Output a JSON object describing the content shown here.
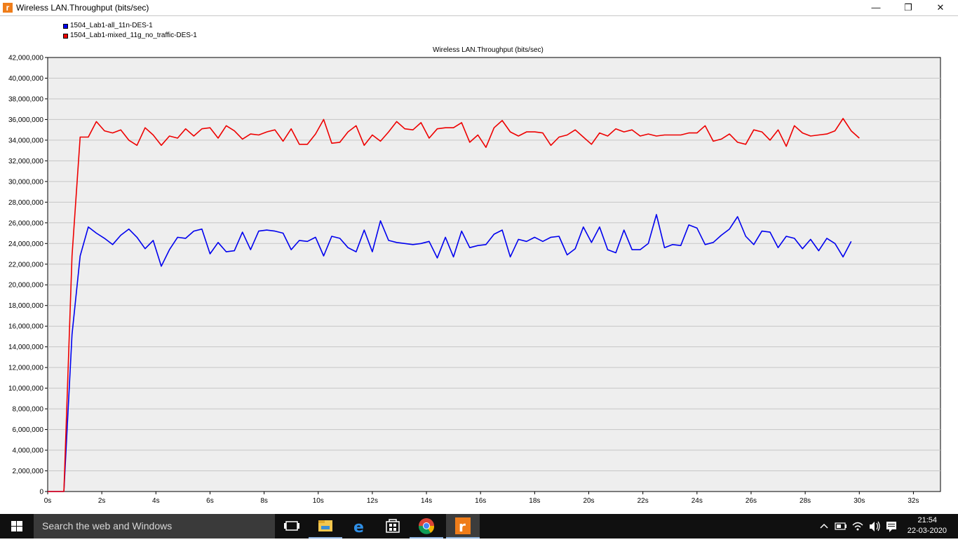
{
  "window": {
    "title": "Wireless LAN.Throughput (bits/sec)",
    "app_icon_glyph": "r",
    "minimize_glyph": "—",
    "maximize_glyph": "❐",
    "close_glyph": "✕"
  },
  "chart_data": {
    "type": "line",
    "title": "Wireless LAN.Throughput (bits/sec)",
    "xlabel": "",
    "ylabel": "",
    "xlim": [
      0,
      33
    ],
    "ylim": [
      0,
      42000000
    ],
    "x_ticks": [
      "0s",
      "2s",
      "4s",
      "6s",
      "8s",
      "10s",
      "12s",
      "14s",
      "16s",
      "18s",
      "20s",
      "22s",
      "24s",
      "26s",
      "28s",
      "30s",
      "32s"
    ],
    "y_ticks": [
      "0",
      "2,000,000",
      "4,000,000",
      "6,000,000",
      "8,000,000",
      "10,000,000",
      "12,000,000",
      "14,000,000",
      "16,000,000",
      "18,000,000",
      "20,000,000",
      "22,000,000",
      "24,000,000",
      "26,000,000",
      "28,000,000",
      "30,000,000",
      "32,000,000",
      "34,000,000",
      "36,000,000",
      "38,000,000",
      "40,000,000",
      "42,000,000"
    ],
    "grid": true,
    "legend": "top-left",
    "background": "#eeeeee",
    "series": [
      {
        "name": "1504_Lab1-all_11n-DES-1",
        "color": "#0000ee",
        "points": [
          [
            0,
            0
          ],
          [
            0.6,
            0
          ],
          [
            0.9,
            15200000
          ],
          [
            1.2,
            22800000
          ],
          [
            1.5,
            25600000
          ],
          [
            1.8,
            25000000
          ],
          [
            2.1,
            24500000
          ],
          [
            2.4,
            23900000
          ],
          [
            2.7,
            24800000
          ],
          [
            3.0,
            25400000
          ],
          [
            3.3,
            24600000
          ],
          [
            3.6,
            23500000
          ],
          [
            3.9,
            24300000
          ],
          [
            4.2,
            21800000
          ],
          [
            4.5,
            23400000
          ],
          [
            4.8,
            24600000
          ],
          [
            5.1,
            24500000
          ],
          [
            5.4,
            25200000
          ],
          [
            5.7,
            25400000
          ],
          [
            6.0,
            23000000
          ],
          [
            6.3,
            24100000
          ],
          [
            6.6,
            23200000
          ],
          [
            6.9,
            23300000
          ],
          [
            7.2,
            25100000
          ],
          [
            7.5,
            23400000
          ],
          [
            7.8,
            25200000
          ],
          [
            8.1,
            25300000
          ],
          [
            8.4,
            25200000
          ],
          [
            8.7,
            25000000
          ],
          [
            9.0,
            23400000
          ],
          [
            9.3,
            24300000
          ],
          [
            9.6,
            24200000
          ],
          [
            9.9,
            24600000
          ],
          [
            10.2,
            22800000
          ],
          [
            10.5,
            24700000
          ],
          [
            10.8,
            24500000
          ],
          [
            11.1,
            23600000
          ],
          [
            11.4,
            23200000
          ],
          [
            11.7,
            25300000
          ],
          [
            12.0,
            23200000
          ],
          [
            12.3,
            26200000
          ],
          [
            12.6,
            24300000
          ],
          [
            12.9,
            24100000
          ],
          [
            13.2,
            24000000
          ],
          [
            13.5,
            23900000
          ],
          [
            13.8,
            24000000
          ],
          [
            14.1,
            24200000
          ],
          [
            14.4,
            22600000
          ],
          [
            14.7,
            24600000
          ],
          [
            15.0,
            22700000
          ],
          [
            15.3,
            25200000
          ],
          [
            15.6,
            23600000
          ],
          [
            15.9,
            23800000
          ],
          [
            16.2,
            23900000
          ],
          [
            16.5,
            24900000
          ],
          [
            16.8,
            25300000
          ],
          [
            17.1,
            22700000
          ],
          [
            17.4,
            24400000
          ],
          [
            17.7,
            24200000
          ],
          [
            18.0,
            24600000
          ],
          [
            18.3,
            24200000
          ],
          [
            18.6,
            24600000
          ],
          [
            18.9,
            24700000
          ],
          [
            19.2,
            22900000
          ],
          [
            19.5,
            23500000
          ],
          [
            19.8,
            25600000
          ],
          [
            20.1,
            24100000
          ],
          [
            20.4,
            25600000
          ],
          [
            20.7,
            23400000
          ],
          [
            21.0,
            23100000
          ],
          [
            21.3,
            25300000
          ],
          [
            21.6,
            23400000
          ],
          [
            21.9,
            23400000
          ],
          [
            22.2,
            24000000
          ],
          [
            22.5,
            26800000
          ],
          [
            22.8,
            23600000
          ],
          [
            23.1,
            23900000
          ],
          [
            23.4,
            23800000
          ],
          [
            23.7,
            25800000
          ],
          [
            24.0,
            25500000
          ],
          [
            24.3,
            23900000
          ],
          [
            24.6,
            24100000
          ],
          [
            24.9,
            24800000
          ],
          [
            25.2,
            25400000
          ],
          [
            25.5,
            26600000
          ],
          [
            25.8,
            24700000
          ],
          [
            26.1,
            23900000
          ],
          [
            26.4,
            25200000
          ],
          [
            26.7,
            25100000
          ],
          [
            27.0,
            23600000
          ],
          [
            27.3,
            24700000
          ],
          [
            27.6,
            24500000
          ],
          [
            27.9,
            23500000
          ],
          [
            28.2,
            24400000
          ],
          [
            28.5,
            23300000
          ],
          [
            28.8,
            24500000
          ],
          [
            29.1,
            24000000
          ],
          [
            29.4,
            22700000
          ],
          [
            29.7,
            24200000
          ]
        ]
      },
      {
        "name": "1504_Lab1-mixed_11g_no_traffic-DES-1",
        "color": "#ee0000",
        "points": [
          [
            0,
            0
          ],
          [
            0.6,
            0
          ],
          [
            0.9,
            22800000
          ],
          [
            1.2,
            34300000
          ],
          [
            1.5,
            34300000
          ],
          [
            1.8,
            35800000
          ],
          [
            2.1,
            34900000
          ],
          [
            2.4,
            34700000
          ],
          [
            2.7,
            35000000
          ],
          [
            3.0,
            34000000
          ],
          [
            3.3,
            33500000
          ],
          [
            3.6,
            35200000
          ],
          [
            3.9,
            34500000
          ],
          [
            4.2,
            33500000
          ],
          [
            4.5,
            34400000
          ],
          [
            4.8,
            34200000
          ],
          [
            5.1,
            35100000
          ],
          [
            5.4,
            34400000
          ],
          [
            5.7,
            35100000
          ],
          [
            6.0,
            35200000
          ],
          [
            6.3,
            34200000
          ],
          [
            6.6,
            35400000
          ],
          [
            6.9,
            34900000
          ],
          [
            7.2,
            34100000
          ],
          [
            7.5,
            34600000
          ],
          [
            7.8,
            34500000
          ],
          [
            8.1,
            34800000
          ],
          [
            8.4,
            35000000
          ],
          [
            8.7,
            33900000
          ],
          [
            9.0,
            35100000
          ],
          [
            9.3,
            33600000
          ],
          [
            9.6,
            33600000
          ],
          [
            9.9,
            34600000
          ],
          [
            10.2,
            36000000
          ],
          [
            10.5,
            33700000
          ],
          [
            10.8,
            33800000
          ],
          [
            11.1,
            34800000
          ],
          [
            11.4,
            35400000
          ],
          [
            11.7,
            33500000
          ],
          [
            12.0,
            34500000
          ],
          [
            12.3,
            33900000
          ],
          [
            12.6,
            34800000
          ],
          [
            12.9,
            35800000
          ],
          [
            13.2,
            35100000
          ],
          [
            13.5,
            35000000
          ],
          [
            13.8,
            35700000
          ],
          [
            14.1,
            34200000
          ],
          [
            14.4,
            35100000
          ],
          [
            14.7,
            35200000
          ],
          [
            15.0,
            35200000
          ],
          [
            15.3,
            35700000
          ],
          [
            15.6,
            33800000
          ],
          [
            15.9,
            34500000
          ],
          [
            16.2,
            33300000
          ],
          [
            16.5,
            35200000
          ],
          [
            16.8,
            35900000
          ],
          [
            17.1,
            34800000
          ],
          [
            17.4,
            34400000
          ],
          [
            17.7,
            34800000
          ],
          [
            18.0,
            34800000
          ],
          [
            18.3,
            34700000
          ],
          [
            18.6,
            33500000
          ],
          [
            18.9,
            34300000
          ],
          [
            19.2,
            34500000
          ],
          [
            19.5,
            35000000
          ],
          [
            19.8,
            34300000
          ],
          [
            20.1,
            33600000
          ],
          [
            20.4,
            34700000
          ],
          [
            20.7,
            34400000
          ],
          [
            21.0,
            35100000
          ],
          [
            21.3,
            34800000
          ],
          [
            21.6,
            35000000
          ],
          [
            21.9,
            34400000
          ],
          [
            22.2,
            34600000
          ],
          [
            22.5,
            34400000
          ],
          [
            22.8,
            34500000
          ],
          [
            23.1,
            34500000
          ],
          [
            23.4,
            34500000
          ],
          [
            23.7,
            34700000
          ],
          [
            24.0,
            34700000
          ],
          [
            24.3,
            35400000
          ],
          [
            24.6,
            33900000
          ],
          [
            24.9,
            34100000
          ],
          [
            25.2,
            34600000
          ],
          [
            25.5,
            33800000
          ],
          [
            25.8,
            33600000
          ],
          [
            26.1,
            35000000
          ],
          [
            26.4,
            34800000
          ],
          [
            26.7,
            34000000
          ],
          [
            27.0,
            35000000
          ],
          [
            27.3,
            33400000
          ],
          [
            27.6,
            35400000
          ],
          [
            27.9,
            34700000
          ],
          [
            28.2,
            34400000
          ],
          [
            28.5,
            34500000
          ],
          [
            28.8,
            34600000
          ],
          [
            29.1,
            34900000
          ],
          [
            29.4,
            36100000
          ],
          [
            29.7,
            34900000
          ],
          [
            30.0,
            34200000
          ]
        ]
      }
    ]
  },
  "taskbar": {
    "search_placeholder": "Search the web and Windows",
    "time": "21:54",
    "date": "22-03-2020",
    "icons": [
      "task-view-icon",
      "file-explorer-icon",
      "edge-icon",
      "store-icon",
      "chrome-icon",
      "riverbed-app-icon"
    ],
    "accent": "#8fb4e0"
  }
}
